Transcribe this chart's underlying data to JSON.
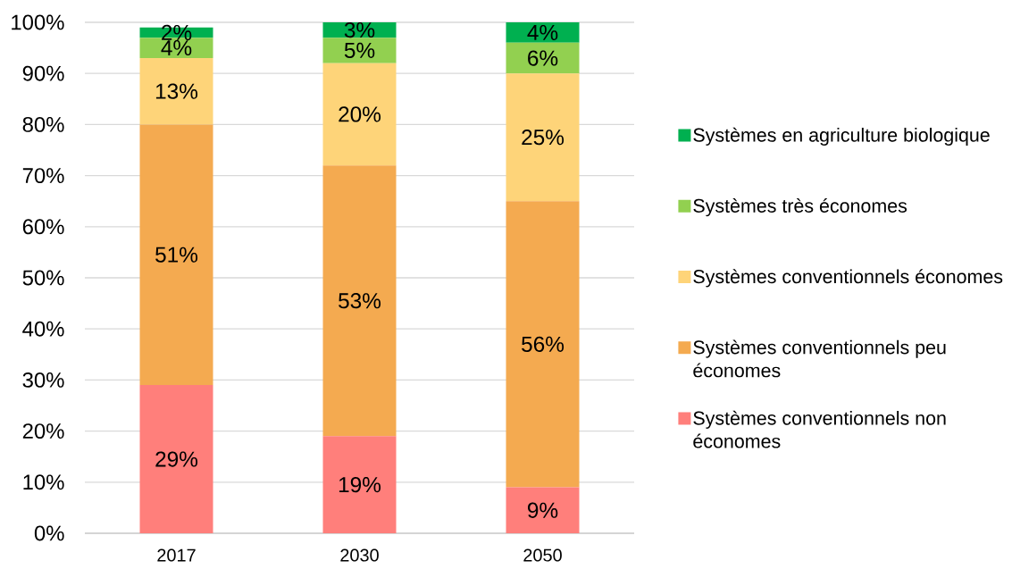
{
  "chart_data": {
    "type": "bar",
    "stacked": true,
    "categories": [
      "2017",
      "2030",
      "2050"
    ],
    "series": [
      {
        "name": "Systèmes conventionnels non économes",
        "color": "#ff7f7b",
        "values": [
          29,
          19,
          9
        ],
        "value_labels": [
          "29%",
          "19%",
          "9%"
        ]
      },
      {
        "name": "Systèmes conventionnels peu économes",
        "color": "#f4aa50",
        "values": [
          51,
          53,
          56
        ],
        "value_labels": [
          "51%",
          "53%",
          "56%"
        ]
      },
      {
        "name": "Systèmes conventionnels économes",
        "color": "#fed479",
        "values": [
          13,
          20,
          25
        ],
        "value_labels": [
          "13%",
          "20%",
          "25%"
        ]
      },
      {
        "name": "Systèmes très économes",
        "color": "#92d050",
        "values": [
          4,
          5,
          6
        ],
        "value_labels": [
          "4%",
          "5%",
          "6%"
        ]
      },
      {
        "name": "Systèmes en agriculture biologique",
        "color": "#00b050",
        "values": [
          2,
          3,
          4
        ],
        "value_labels": [
          "2%",
          "3%",
          "4%"
        ]
      }
    ],
    "ylim": [
      0,
      100
    ],
    "yticks": [
      {
        "value": 0,
        "label": "0%"
      },
      {
        "value": 10,
        "label": "10%"
      },
      {
        "value": 20,
        "label": "20%"
      },
      {
        "value": 30,
        "label": "30%"
      },
      {
        "value": 40,
        "label": "40%"
      },
      {
        "value": 50,
        "label": "50%"
      },
      {
        "value": 60,
        "label": "60%"
      },
      {
        "value": 70,
        "label": "70%"
      },
      {
        "value": 80,
        "label": "80%"
      },
      {
        "value": 90,
        "label": "90%"
      },
      {
        "value": 100,
        "label": "100%"
      }
    ],
    "grid": "y",
    "legend": "right"
  }
}
